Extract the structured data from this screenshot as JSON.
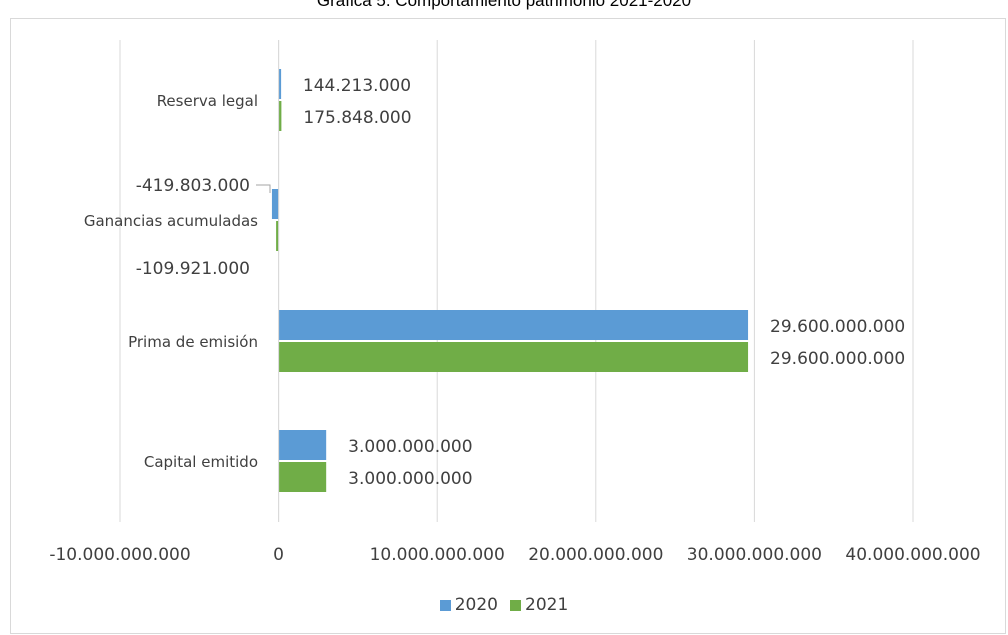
{
  "chart_data": {
    "type": "bar",
    "orientation": "horizontal",
    "title": "Grafica 5. Comportamiento patrimonio 2021-2020",
    "categories": [
      "Capital emitido",
      "Prima de emisión",
      "Ganancias acumuladas",
      "Reserva legal"
    ],
    "series": [
      {
        "name": "2020",
        "color": "#5b9bd5",
        "values": [
          3000000000,
          29600000000,
          -419803000,
          144213000
        ],
        "value_labels": [
          "3.000.000.000",
          "29.600.000.000",
          "-419.803.000",
          "144.213.000"
        ]
      },
      {
        "name": "2021",
        "color": "#70ad47",
        "values": [
          3000000000,
          29600000000,
          -109921000,
          175848000
        ],
        "value_labels": [
          "3.000.000.000",
          "29.600.000.000",
          "-109.921.000",
          "175.848.000"
        ]
      }
    ],
    "xlim": [
      -10000000000,
      40000000000
    ],
    "x_ticks": [
      -10000000000,
      0,
      10000000000,
      20000000000,
      30000000000,
      40000000000
    ],
    "x_tick_labels": [
      "-10.000.000.000",
      "0",
      "10.000.000.000",
      "20.000.000.000",
      "30.000.000.000",
      "40.000.000.000"
    ],
    "xlabel": "",
    "ylabel": "",
    "grid": true,
    "legend_position": "bottom"
  }
}
